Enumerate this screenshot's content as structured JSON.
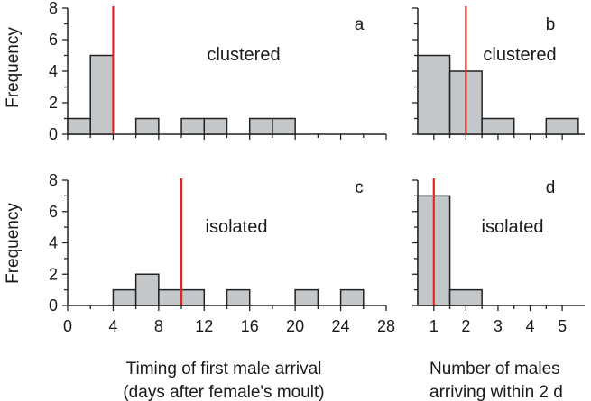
{
  "colors": {
    "bar_fill": "#c3c7c9",
    "bar_stroke": "#222222",
    "marker_line": "#e52421",
    "axis": "#222222"
  },
  "shared": {
    "ylabel": "Frequency",
    "xlabel_timing": [
      "Timing of first male arrival",
      "(days after female's moult)"
    ],
    "xlabel_number": [
      "Number of males",
      "arriving within 2 d"
    ]
  },
  "chart_data": [
    {
      "id": "a",
      "type": "bar",
      "panel_label": "a",
      "annotation": "clustered",
      "x_tick_labels": [],
      "y_tick_labels": [
        "0",
        "2",
        "4",
        "6",
        "8"
      ],
      "xlim": [
        0,
        28
      ],
      "ylim": [
        0,
        8
      ],
      "bin_width": 2,
      "bins": [
        {
          "x": 0,
          "count": 1
        },
        {
          "x": 2,
          "count": 5
        },
        {
          "x": 6,
          "count": 1
        },
        {
          "x": 10,
          "count": 1
        },
        {
          "x": 12,
          "count": 1
        },
        {
          "x": 16,
          "count": 1
        },
        {
          "x": 18,
          "count": 1
        }
      ],
      "marker_x": 4
    },
    {
      "id": "b",
      "type": "bar",
      "panel_label": "b",
      "annotation": "clustered",
      "x_tick_labels": [],
      "y_tick_labels": [],
      "xlim": [
        0.5,
        5.7
      ],
      "ylim": [
        0,
        8
      ],
      "bin_width": 1,
      "bins": [
        {
          "x": 0.5,
          "count": 5
        },
        {
          "x": 1.5,
          "count": 4
        },
        {
          "x": 2.5,
          "count": 1
        },
        {
          "x": 4.5,
          "count": 1
        }
      ],
      "marker_x": 2
    },
    {
      "id": "c",
      "type": "bar",
      "panel_label": "c",
      "annotation": "isolated",
      "x_tick_labels": [
        "0",
        "4",
        "8",
        "12",
        "16",
        "20",
        "24",
        "28"
      ],
      "y_tick_labels": [
        "0",
        "2",
        "4",
        "6",
        "8"
      ],
      "xlim": [
        0,
        28
      ],
      "ylim": [
        0,
        8
      ],
      "bin_width": 2,
      "bins": [
        {
          "x": 4,
          "count": 1
        },
        {
          "x": 6,
          "count": 2
        },
        {
          "x": 8,
          "count": 1
        },
        {
          "x": 10,
          "count": 1
        },
        {
          "x": 14,
          "count": 1
        },
        {
          "x": 20,
          "count": 1
        },
        {
          "x": 24,
          "count": 1
        }
      ],
      "marker_x": 10
    },
    {
      "id": "d",
      "type": "bar",
      "panel_label": "d",
      "annotation": "isolated",
      "x_tick_labels": [
        "1",
        "2",
        "3",
        "4",
        "5"
      ],
      "y_tick_labels": [],
      "xlim": [
        0.5,
        5.7
      ],
      "ylim": [
        0,
        8
      ],
      "bin_width": 1,
      "bins": [
        {
          "x": 0.5,
          "count": 7
        },
        {
          "x": 1.5,
          "count": 1
        }
      ],
      "marker_x": 1
    }
  ]
}
